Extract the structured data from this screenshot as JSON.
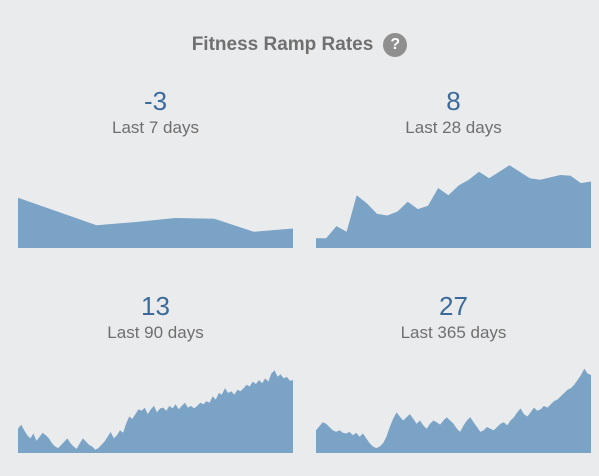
{
  "header": {
    "title": "Fitness Ramp Rates",
    "help_icon": "help-icon",
    "help_glyph": "?"
  },
  "colors": {
    "background": "#eaebed",
    "value_text": "#3b6b9a",
    "area_fill": "#7aa3c5",
    "label_text": "#6f6f6f"
  },
  "panels": [
    {
      "value": "-3",
      "label": "Last 7 days",
      "chart_data": {
        "type": "area",
        "ylim": [
          0,
          1
        ],
        "values": [
          0.62,
          0.45,
          0.28,
          0.32,
          0.37,
          0.36,
          0.2,
          0.24
        ]
      }
    },
    {
      "value": "8",
      "label": "Last 28 days",
      "chart_data": {
        "type": "area",
        "ylim": [
          0,
          1
        ],
        "values": [
          0.12,
          0.12,
          0.27,
          0.2,
          0.65,
          0.55,
          0.42,
          0.4,
          0.45,
          0.57,
          0.48,
          0.52,
          0.74,
          0.65,
          0.77,
          0.84,
          0.94,
          0.86,
          0.94,
          1.02,
          0.94,
          0.86,
          0.84,
          0.87,
          0.9,
          0.89,
          0.8,
          0.82
        ]
      }
    },
    {
      "value": "13",
      "label": "Last 90 days",
      "chart_data": {
        "type": "area",
        "ylim": [
          0,
          1
        ],
        "values": [
          0.3,
          0.35,
          0.28,
          0.22,
          0.18,
          0.24,
          0.15,
          0.2,
          0.25,
          0.22,
          0.18,
          0.12,
          0.08,
          0.06,
          0.1,
          0.14,
          0.18,
          0.12,
          0.08,
          0.05,
          0.12,
          0.18,
          0.14,
          0.1,
          0.08,
          0.04,
          0.06,
          0.1,
          0.14,
          0.2,
          0.26,
          0.18,
          0.22,
          0.28,
          0.25,
          0.36,
          0.45,
          0.42,
          0.48,
          0.54,
          0.52,
          0.56,
          0.48,
          0.54,
          0.58,
          0.5,
          0.55,
          0.56,
          0.52,
          0.58,
          0.55,
          0.6,
          0.54,
          0.58,
          0.62,
          0.56,
          0.58,
          0.55,
          0.58,
          0.62,
          0.6,
          0.64,
          0.62,
          0.7,
          0.66,
          0.74,
          0.72,
          0.8,
          0.74,
          0.76,
          0.72,
          0.78,
          0.76,
          0.8,
          0.84,
          0.82,
          0.88,
          0.85,
          0.9,
          0.86,
          0.92,
          0.88,
          0.98,
          1.02,
          0.94,
          0.97,
          0.92,
          0.94,
          0.89,
          0.9
        ]
      }
    },
    {
      "value": "27",
      "label": "Last 365 days",
      "chart_data": {
        "type": "area",
        "ylim": [
          0,
          1
        ],
        "values": [
          0.28,
          0.33,
          0.38,
          0.36,
          0.32,
          0.28,
          0.26,
          0.28,
          0.25,
          0.24,
          0.26,
          0.22,
          0.25,
          0.2,
          0.24,
          0.18,
          0.12,
          0.08,
          0.06,
          0.08,
          0.12,
          0.2,
          0.32,
          0.42,
          0.5,
          0.45,
          0.4,
          0.44,
          0.48,
          0.42,
          0.36,
          0.4,
          0.34,
          0.3,
          0.36,
          0.4,
          0.38,
          0.35,
          0.4,
          0.44,
          0.4,
          0.36,
          0.3,
          0.26,
          0.34,
          0.4,
          0.44,
          0.38,
          0.32,
          0.26,
          0.28,
          0.32,
          0.3,
          0.28,
          0.32,
          0.36,
          0.38,
          0.34,
          0.4,
          0.44,
          0.5,
          0.55,
          0.48,
          0.45,
          0.5,
          0.56,
          0.52,
          0.54,
          0.58,
          0.56,
          0.6,
          0.64,
          0.66,
          0.7,
          0.74,
          0.78,
          0.8,
          0.84,
          0.9,
          0.96,
          1.04,
          0.98,
          0.96
        ]
      }
    }
  ]
}
